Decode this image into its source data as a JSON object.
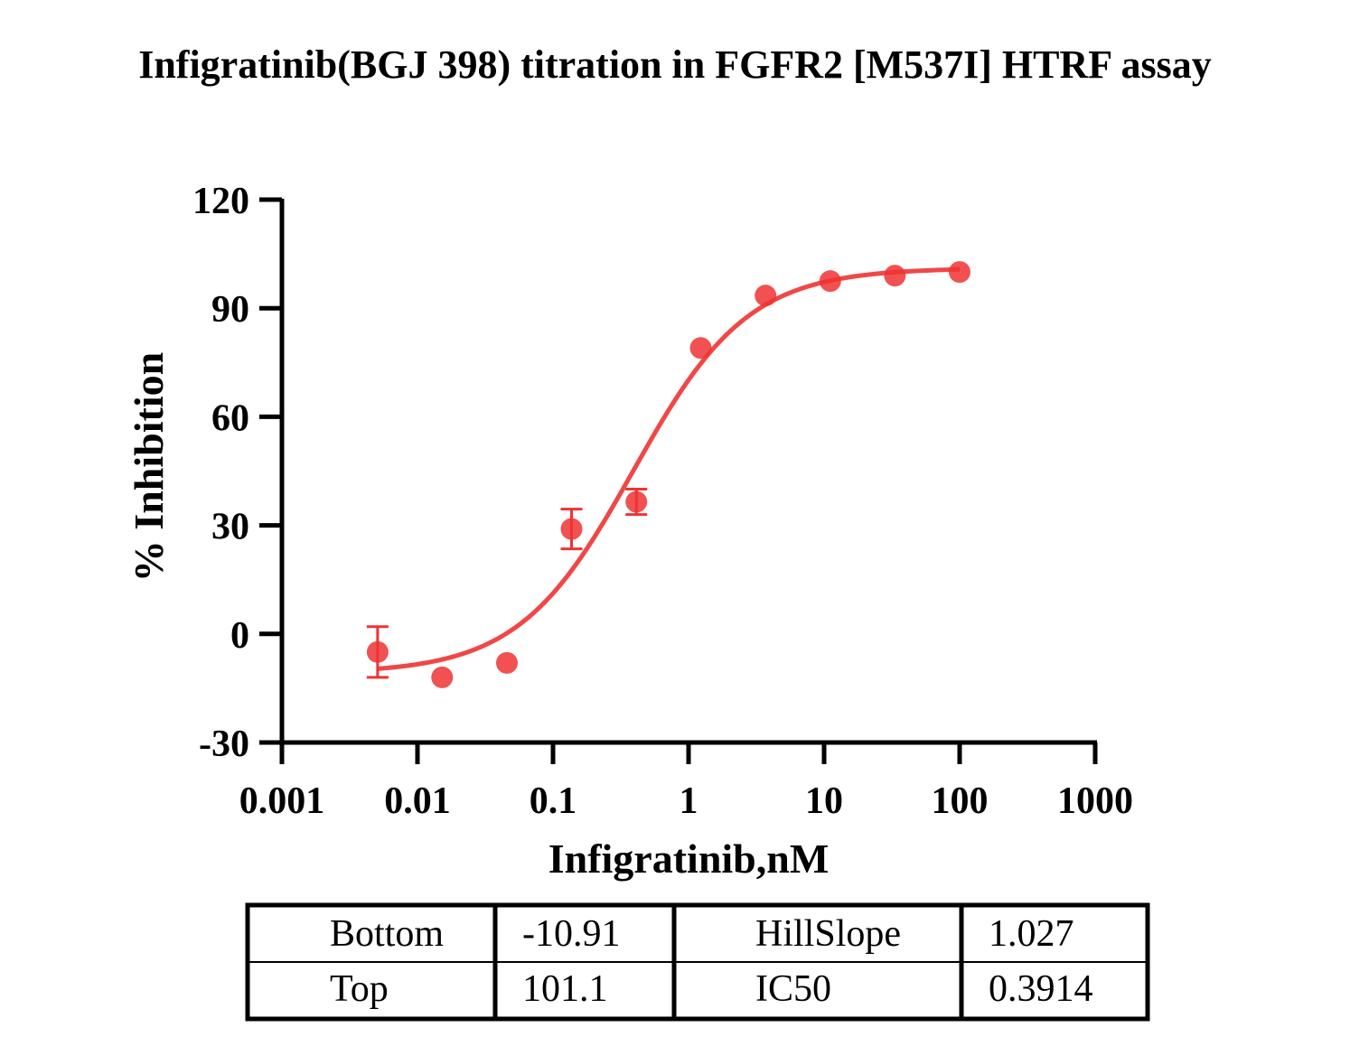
{
  "chart_data": {
    "type": "scatter",
    "title": "Infigratinib(BGJ 398) titration in FGFR2 [M537I] HTRF assay",
    "xlabel": "Infigratinib,nM",
    "ylabel": "% Inhibition",
    "xscale": "log",
    "xlim": [
      0.001,
      1000
    ],
    "ylim": [
      -30,
      120
    ],
    "xticks": [
      0.001,
      0.01,
      0.1,
      1,
      10,
      100,
      1000
    ],
    "xtick_labels": [
      "0.001",
      "0.01",
      "0.1",
      "1",
      "10",
      "100",
      "1000"
    ],
    "yticks": [
      -30,
      0,
      30,
      60,
      90,
      120
    ],
    "ytick_labels": [
      "-30",
      "0",
      "30",
      "60",
      "90",
      "120"
    ],
    "color": "#ee3333",
    "series": [
      {
        "name": "Infigratinib",
        "x": [
          0.00508,
          0.0152,
          0.0457,
          0.137,
          0.412,
          1.23,
          3.7,
          11.1,
          33.3,
          100
        ],
        "y": [
          -5,
          -12,
          -8,
          29,
          36.5,
          79,
          93.5,
          97.5,
          99,
          100
        ],
        "yerr": [
          7,
          0,
          0,
          5.5,
          3.5,
          0,
          0,
          0,
          0,
          0
        ]
      }
    ],
    "fit": {
      "model": "4PL",
      "bottom": -10.91,
      "top": 101.1,
      "hillslope": 1.027,
      "ic50": 0.3914,
      "x_range": [
        0.005,
        100
      ]
    },
    "table": {
      "rows": [
        [
          "Bottom",
          "-10.91",
          "HillSlope",
          "1.027"
        ],
        [
          "Top",
          "101.1",
          "IC50",
          "0.3914"
        ]
      ]
    }
  }
}
